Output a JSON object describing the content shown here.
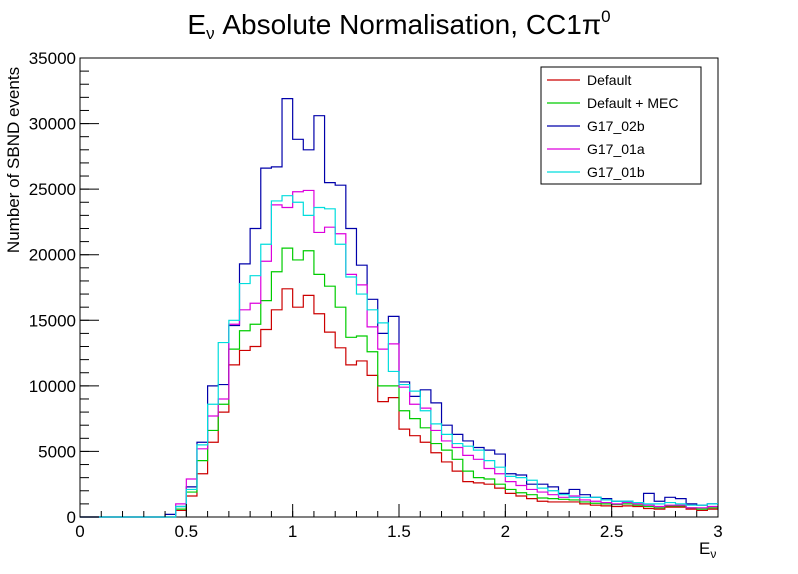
{
  "chart_data": {
    "type": "line",
    "title_main": "E",
    "title_sub": "ν",
    "title_rest": " Absolute Normalisation, CC1π",
    "title_sup": "0",
    "xlabel_main": "E",
    "xlabel_sub": "ν",
    "ylabel": "Number of SBND events",
    "xlim": [
      0,
      3
    ],
    "ylim": [
      0,
      35000
    ],
    "xticks": [
      0,
      0.5,
      1,
      1.5,
      2,
      2.5,
      3
    ],
    "xtick_labels": [
      "0",
      "0.5",
      "1",
      "1.5",
      "2",
      "2.5",
      "3"
    ],
    "yticks": [
      0,
      5000,
      10000,
      15000,
      20000,
      25000,
      30000,
      35000
    ],
    "ytick_labels": [
      "0",
      "5000",
      "10000",
      "15000",
      "20000",
      "25000",
      "30000",
      "35000"
    ],
    "grid": false,
    "legend_position": "top-right",
    "histogram_bins": {
      "start": 0,
      "width": 0.05,
      "count": 60
    },
    "series": [
      {
        "name": "Default",
        "color": "#cc0000",
        "values": [
          0,
          0,
          0,
          0,
          0,
          0,
          0,
          0,
          0,
          500,
          1600,
          3300,
          5700,
          8000,
          11600,
          12700,
          13000,
          14300,
          15800,
          17400,
          16000,
          16900,
          15500,
          14100,
          12900,
          11600,
          11900,
          10800,
          8800,
          9100,
          6700,
          6200,
          5700,
          4900,
          4200,
          3500,
          2700,
          2600,
          2500,
          2200,
          1800,
          1600,
          1400,
          1200,
          1150,
          1150,
          1150,
          1000,
          900,
          850,
          800,
          850,
          800,
          650,
          600,
          750,
          750,
          600,
          500,
          600
        ]
      },
      {
        "name": "Default + MEC",
        "color": "#00cc00",
        "values": [
          0,
          0,
          0,
          0,
          0,
          0,
          0,
          0,
          0,
          600,
          1900,
          4300,
          6600,
          8600,
          12800,
          14200,
          14700,
          16500,
          18700,
          20500,
          19600,
          20300,
          18500,
          17600,
          16000,
          13700,
          13800,
          12600,
          10000,
          10000,
          8100,
          7500,
          6800,
          5600,
          5100,
          4400,
          3500,
          3000,
          2900,
          2500,
          2100,
          1850,
          1700,
          1450,
          1400,
          1350,
          1300,
          1150,
          1050,
          1000,
          950,
          1000,
          900,
          800,
          700,
          850,
          850,
          700,
          600,
          700
        ]
      },
      {
        "name": "G17_02b",
        "color": "#0000aa",
        "values": [
          0,
          0,
          0,
          0,
          0,
          0,
          0,
          0,
          200,
          800,
          2300,
          5700,
          10000,
          10100,
          14600,
          19300,
          22000,
          26600,
          26700,
          31900,
          28800,
          28000,
          30600,
          25500,
          25300,
          22000,
          19200,
          16600,
          14000,
          15300,
          10300,
          9200,
          9700,
          8700,
          7000,
          6300,
          5800,
          5300,
          5100,
          4800,
          3300,
          3200,
          2500,
          2500,
          2300,
          1800,
          2100,
          1700,
          1500,
          1400,
          1200,
          1200,
          1100,
          1800,
          1200,
          1500,
          1400,
          1000,
          900,
          1000
        ]
      },
      {
        "name": "G17_01a",
        "color": "#dd00dd",
        "values": [
          0,
          0,
          0,
          0,
          0,
          0,
          0,
          0,
          0,
          1000,
          2900,
          5200,
          7700,
          9000,
          14700,
          15800,
          16300,
          19500,
          23800,
          23600,
          24800,
          24900,
          21700,
          22100,
          21600,
          18500,
          17700,
          14500,
          12800,
          13200,
          9900,
          8600,
          8300,
          6600,
          5800,
          5300,
          4700,
          4400,
          3700,
          3300,
          2700,
          2400,
          2100,
          1900,
          1700,
          1500,
          1600,
          1300,
          1200,
          1100,
          1000,
          1100,
          1000,
          900,
          800,
          900,
          900,
          700,
          700,
          800
        ]
      },
      {
        "name": "G17_01b",
        "color": "#00dddd",
        "values": [
          0,
          0,
          0,
          0,
          0,
          0,
          0,
          0,
          0,
          800,
          2100,
          5500,
          8600,
          13300,
          15000,
          17800,
          18400,
          20800,
          24100,
          24500,
          24000,
          23000,
          23600,
          23500,
          20800,
          18300,
          17000,
          15800,
          14800,
          11100,
          10100,
          9600,
          8100,
          7100,
          6300,
          5600,
          5400,
          5100,
          4300,
          3800,
          3100,
          3000,
          2800,
          2200,
          2000,
          1700,
          1500,
          1500,
          1500,
          1300,
          1200,
          1200,
          1100,
          1000,
          1000,
          1100,
          1000,
          900,
          900,
          1000
        ]
      }
    ]
  }
}
